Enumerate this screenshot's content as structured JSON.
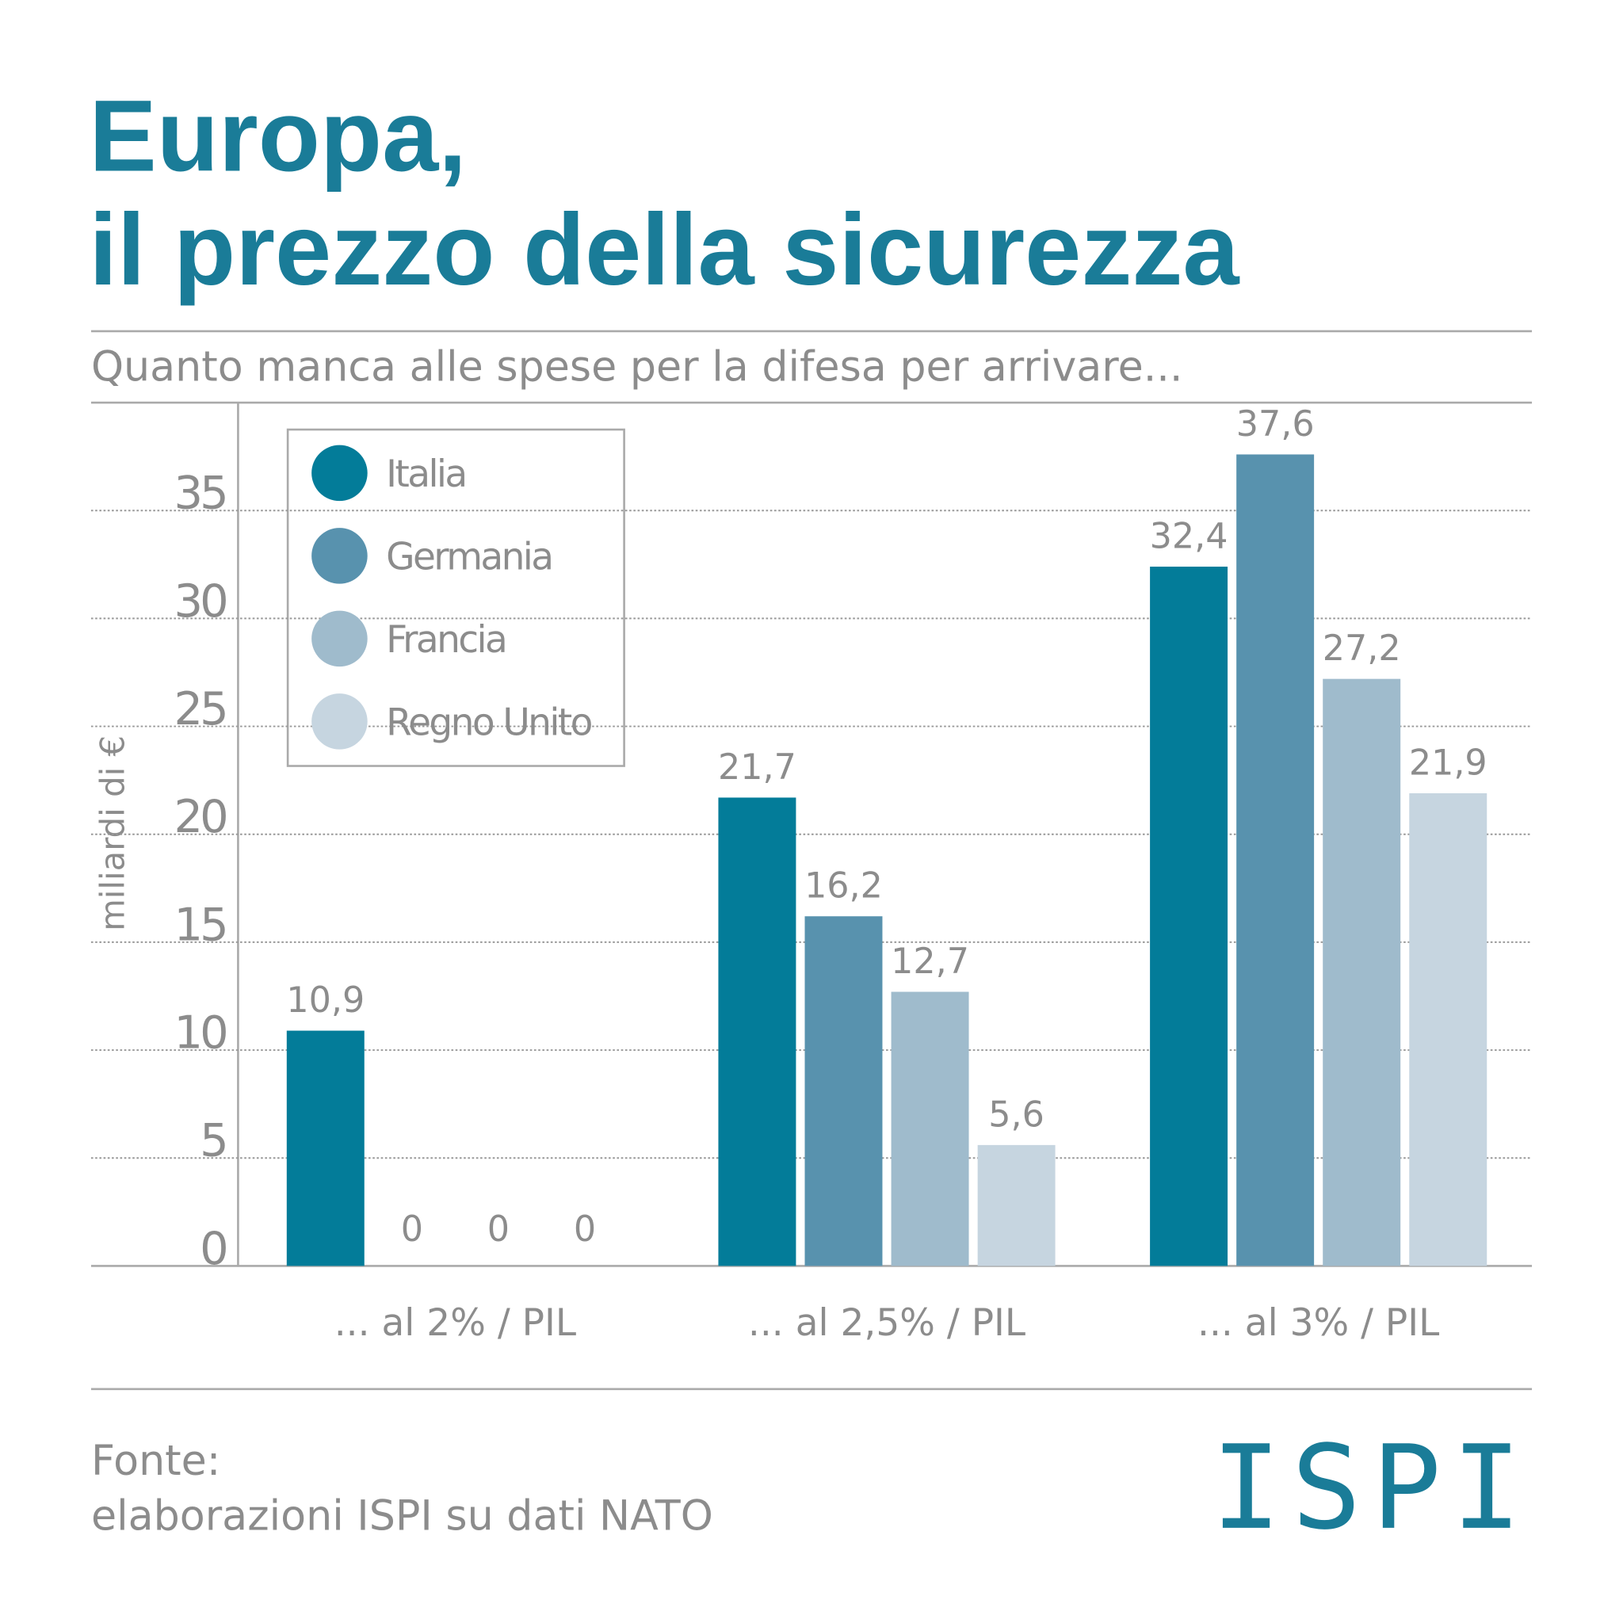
{
  "chart_data": {
    "type": "bar",
    "title": [
      "Europa,",
      "il prezzo della sicurezza"
    ],
    "subtitle": "Quanto manca alle spese per la difesa per arrivare...",
    "y_label": "miliardi di €",
    "categories": [
      "... al 2% / PIL",
      "... al 2,5% / PIL",
      "... al 3% / PIL"
    ],
    "series": [
      {
        "name": "Italia",
        "color": "#037c99",
        "values": [
          10.9,
          21.7,
          32.4
        ],
        "value_labels": [
          "10,9",
          "21,7",
          "32,4"
        ]
      },
      {
        "name": "Germania",
        "color": "#5892ae",
        "values": [
          0,
          16.2,
          37.6
        ],
        "value_labels": [
          "0",
          "16,2",
          "37,6"
        ]
      },
      {
        "name": "Francia",
        "color": "#9fbbcc",
        "values": [
          0,
          12.7,
          27.2
        ],
        "value_labels": [
          "0",
          "12,7",
          "27,2"
        ]
      },
      {
        "name": "Regno Unito",
        "color": "#c6d5e0",
        "values": [
          0,
          5.6,
          21.9
        ],
        "value_labels": [
          "0",
          "5,6",
          "21,9"
        ]
      }
    ],
    "ylim": [
      0,
      40
    ],
    "yticks": [
      0,
      5,
      10,
      15,
      20,
      25,
      30,
      35
    ],
    "grid": true,
    "source": [
      "Fonte:",
      "elaborazioni ISPI su dati NATO"
    ],
    "logo": "ISPI"
  }
}
